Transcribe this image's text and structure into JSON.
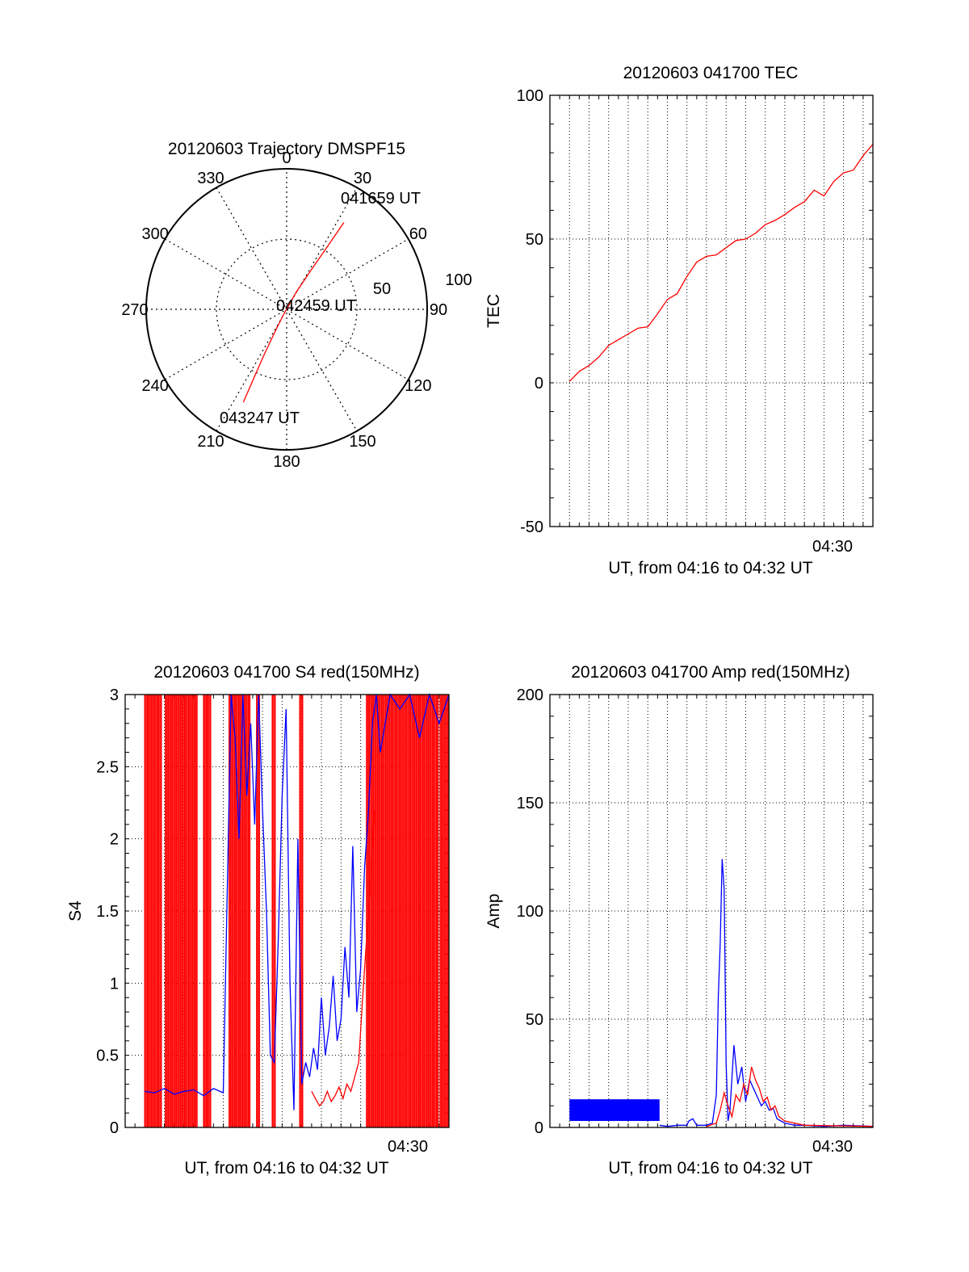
{
  "colors": {
    "red": "#ff0000",
    "blue": "#0000ff",
    "axis": "#000000"
  },
  "chart_data": [
    {
      "id": "polar",
      "type": "scatter",
      "subtype": "polar-trajectory",
      "title": "20120603 Trajectory DMSPF15",
      "azimuth_labels": [
        "0",
        "30",
        "60",
        "90",
        "120",
        "150",
        "180",
        "210",
        "240",
        "270",
        "300",
        "330"
      ],
      "radial_labels": [
        "50",
        "100"
      ],
      "radial_max": 100,
      "track_zenith_angle": [
        74,
        54,
        34,
        14,
        4,
        14,
        34,
        54,
        73
      ],
      "track_azimuth": [
        33.4,
        33.0,
        32.0,
        29.0,
        211.0,
        208.0,
        206.5,
        205.5,
        205.0
      ],
      "annotations": [
        {
          "text": "041659 UT",
          "zenith_angle": 74,
          "azimuth": 33.4
        },
        {
          "text": "042459 UT",
          "zenith_angle": 0,
          "azimuth": 0
        },
        {
          "text": "043247 UT",
          "zenith_angle": 73,
          "azimuth": 205.0
        }
      ],
      "grid": true
    },
    {
      "id": "tec",
      "type": "line",
      "title": "20120603 041700 TEC",
      "xlabel": "UT, from 04:16 to 04:32 UT",
      "ylabel": "TEC",
      "xlim_min": [
        16.0,
        32.5
      ],
      "ylim": [
        -50,
        100
      ],
      "yticks": [
        "-50",
        "0",
        "50",
        "100"
      ],
      "xtick_label": "04:30",
      "xtick_value_min": 30.0,
      "x_grid_min": [
        17,
        18,
        19,
        20,
        21,
        22,
        23,
        24,
        25,
        26,
        27,
        28,
        29,
        30,
        31,
        32
      ],
      "grid": true,
      "series": [
        {
          "color": "#ff0000",
          "x": [
            17.0,
            17.5,
            18.0,
            18.5,
            19.0,
            19.5,
            20.0,
            20.5,
            21.0,
            21.5,
            22.0,
            22.5,
            23.0,
            23.5,
            24.0,
            24.5,
            25.0,
            25.5,
            26.0,
            26.5,
            27.0,
            27.5,
            28.0,
            28.5,
            29.0,
            29.5,
            30.0,
            30.5,
            31.0,
            31.5,
            32.0,
            32.5
          ],
          "y": [
            0.5,
            4,
            6,
            9,
            13,
            15,
            17,
            19,
            19.5,
            24,
            29,
            31,
            37,
            42,
            44,
            44.5,
            47,
            49.5,
            50,
            52,
            55,
            56.5,
            58.5,
            61,
            63,
            67,
            65,
            70,
            73,
            74,
            79,
            83
          ]
        }
      ]
    },
    {
      "id": "s4",
      "type": "line",
      "title": "20120603 041700 S4 red(150MHz)",
      "xlabel": "UT, from 04:16 to 04:32 UT",
      "ylabel": "S4",
      "xlim_min": [
        16.0,
        32.5
      ],
      "ylim": [
        0,
        3
      ],
      "yticks": [
        "0",
        "0.5",
        "1",
        "1.5",
        "2",
        "2.5",
        "3"
      ],
      "xtick_label": "04:30",
      "xtick_value_min": 30.0,
      "x_grid_min": [
        17,
        18,
        19,
        20,
        21,
        22,
        23,
        24,
        25,
        26,
        27,
        28,
        29,
        30,
        31,
        32
      ],
      "grid": true,
      "red_saturated_spans_min": [
        [
          17.0,
          17.9
        ],
        [
          18.05,
          19.7
        ],
        [
          20.0,
          20.35
        ],
        [
          21.3,
          22.4
        ],
        [
          22.7,
          22.9
        ],
        [
          23.5,
          23.65
        ],
        [
          24.9,
          25.05
        ],
        [
          28.3,
          32.0
        ],
        [
          32.05,
          32.5
        ]
      ],
      "series": [
        {
          "color": "#0000ff",
          "x": [
            17.0,
            17.5,
            18.0,
            18.5,
            19.0,
            19.5,
            20.0,
            20.5,
            21.0,
            21.4,
            21.6,
            21.8,
            22.0,
            22.2,
            22.4,
            22.6,
            22.8,
            23.0,
            23.2,
            23.4,
            23.6,
            23.8,
            24.0,
            24.2,
            24.4,
            24.6,
            24.8,
            25.0,
            25.2,
            25.4,
            25.6,
            25.8,
            26.0,
            26.2,
            26.4,
            26.6,
            26.8,
            27.0,
            27.2,
            27.4,
            27.6,
            27.8,
            28.0,
            28.2,
            28.4,
            28.6,
            28.8,
            29.0,
            29.5,
            30.0,
            30.5,
            31.0,
            31.5,
            32.0,
            32.5
          ],
          "y": [
            0.25,
            0.24,
            0.27,
            0.23,
            0.25,
            0.26,
            0.22,
            0.27,
            0.24,
            3.0,
            2.7,
            2.0,
            3.0,
            2.3,
            2.8,
            2.1,
            3.0,
            2.2,
            1.5,
            0.5,
            0.45,
            1.3,
            2.3,
            2.9,
            1.0,
            0.12,
            2.0,
            0.3,
            0.45,
            0.35,
            0.55,
            0.4,
            0.9,
            0.5,
            0.7,
            1.05,
            0.6,
            0.75,
            1.25,
            0.9,
            1.95,
            0.8,
            1.1,
            1.8,
            2.2,
            2.8,
            3.0,
            2.6,
            3.0,
            2.9,
            3.0,
            2.7,
            3.0,
            2.8,
            3.0
          ]
        },
        {
          "color": "#ff0000",
          "x": [
            25.5,
            25.7,
            25.9,
            26.1,
            26.3,
            26.5,
            26.7,
            26.9,
            27.1,
            27.3,
            27.5,
            27.7,
            27.9,
            28.1,
            28.3,
            28.5,
            28.7
          ],
          "y": [
            0.25,
            0.2,
            0.15,
            0.18,
            0.25,
            0.18,
            0.22,
            0.28,
            0.2,
            0.3,
            0.25,
            0.35,
            0.45,
            0.9,
            1.3,
            1.7,
            2.2
          ]
        }
      ]
    },
    {
      "id": "amp",
      "type": "line",
      "title": "20120603 041700 Amp red(150MHz)",
      "xlabel": "UT, from 04:16 to 04:32 UT",
      "ylabel": "Amp",
      "xlim_min": [
        16.0,
        32.5
      ],
      "ylim": [
        0,
        200
      ],
      "yticks": [
        "0",
        "50",
        "100",
        "150",
        "200"
      ],
      "xtick_label": "04:30",
      "xtick_value_min": 30.0,
      "x_grid_min": [
        17,
        18,
        19,
        20,
        21,
        22,
        23,
        24,
        25,
        26,
        27,
        28,
        29,
        30,
        31,
        32
      ],
      "grid": true,
      "noise_band": {
        "color": "#0000ff",
        "x_min": [
          17.0,
          21.6
        ],
        "y_range": [
          3,
          13
        ]
      },
      "series": [
        {
          "color": "#0000ff",
          "x": [
            21.6,
            22.0,
            22.5,
            23.0,
            23.1,
            23.3,
            23.5,
            24.0,
            24.3,
            24.5,
            24.6,
            24.7,
            24.8,
            24.9,
            25.0,
            25.1,
            25.2,
            25.4,
            25.6,
            25.8,
            26.0,
            26.2,
            26.4,
            26.6,
            26.8,
            27.0,
            27.2,
            27.4,
            27.6,
            27.8,
            28.0,
            28.5,
            29.0,
            30.0,
            31.0,
            32.5
          ],
          "y": [
            1,
            0.5,
            1,
            1,
            3,
            4,
            1,
            1,
            2,
            15,
            60,
            85,
            124,
            110,
            30,
            3,
            8,
            38,
            20,
            28,
            12,
            22,
            18,
            14,
            10,
            12,
            8,
            9,
            4,
            3,
            2,
            1,
            1,
            0.5,
            1,
            0.5
          ]
        },
        {
          "color": "#ff0000",
          "x": [
            24.0,
            24.5,
            24.7,
            24.9,
            25.1,
            25.3,
            25.5,
            25.7,
            25.9,
            26.1,
            26.3,
            26.5,
            26.7,
            26.9,
            27.1,
            27.3,
            27.5,
            27.7,
            28.0,
            29.0,
            32.5
          ],
          "y": [
            0.5,
            2,
            8,
            16,
            10,
            5,
            15,
            12,
            20,
            15,
            28,
            22,
            18,
            12,
            14,
            8,
            10,
            5,
            3,
            1,
            0.5
          ]
        }
      ]
    }
  ]
}
